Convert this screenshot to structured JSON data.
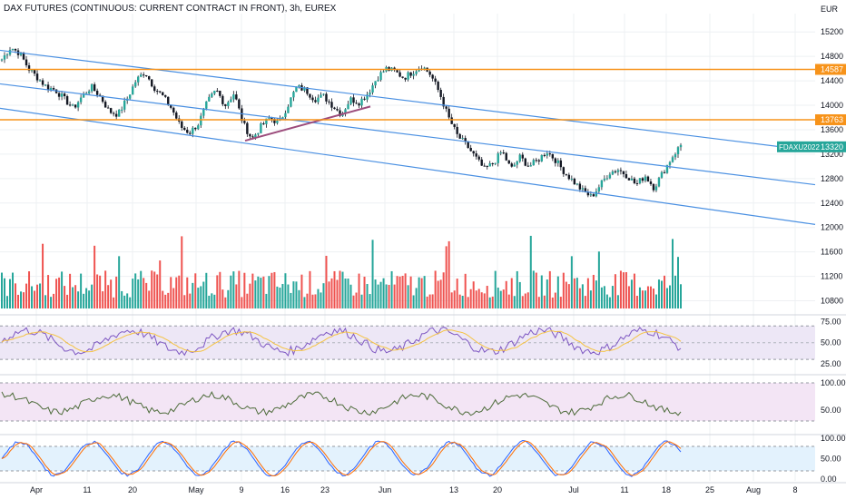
{
  "header": {
    "title": "DAX FUTURES (CONTINUOUS: CURRENT CONTRACT IN FRONT), 3h, EUREX"
  },
  "colors": {
    "up": "#26a69a",
    "down": "#131722",
    "channel": "#4a90e2",
    "level": "#f7931a",
    "trend": "#9c4c7c",
    "rsi": "#7e57c2",
    "rsi_ma": "#f5c342",
    "rsi_band": "#ede7f6",
    "cci": "#4d6b3a",
    "cci_band": "#f3e5f5",
    "stoch_k": "#2962ff",
    "stoch_d": "#ff6d00",
    "stoch_band": "#e3f2fd",
    "vol_up": "#26a69a",
    "vol_down": "#ef5350",
    "grid": "#eef0f3"
  },
  "chart_data": {
    "type": "candlestick",
    "instrument": "DAX FUTURES (CONTINUOUS: CURRENT CONTRACT IN FRONT)",
    "interval": "3h",
    "exchange": "EUREX",
    "currency": "EUR",
    "price_axis": {
      "ticks": [
        10800,
        11200,
        11600,
        12000,
        12400,
        12800,
        13200,
        13600,
        14000,
        14400,
        14800,
        15200
      ],
      "labels": [
        "10800",
        "11200",
        "11600",
        "12000",
        "12400",
        "12800",
        "13200",
        "13600",
        "14000",
        "14400",
        "14800",
        "15200"
      ],
      "range": [
        10600,
        15500
      ]
    },
    "time_axis": {
      "labels": [
        "Apr",
        "11",
        "20",
        "May",
        "9",
        "16",
        "23",
        "Jun",
        "13",
        "20",
        "Jul",
        "11",
        "18",
        "25",
        "Aug",
        "8"
      ]
    },
    "anchor_prices": [
      14750,
      14950,
      14850,
      14600,
      14450,
      14300,
      14250,
      14100,
      13950,
      14150,
      14300,
      14150,
      13900,
      13850,
      14100,
      14400,
      14550,
      14300,
      14150,
      13950,
      13650,
      13550,
      13700,
      14050,
      14250,
      14000,
      14200,
      13700,
      13450,
      13650,
      13800,
      13700,
      14000,
      14300,
      14250,
      14100,
      14150,
      14000,
      13850,
      14100,
      14050,
      14200,
      14450,
      14600,
      14550,
      14450,
      14550,
      14650,
      14500,
      14200,
      13800,
      13500,
      13350,
      13150,
      12950,
      13050,
      13250,
      12950,
      13150,
      13000,
      13100,
      13250,
      13100,
      12900,
      12750,
      12600,
      12500,
      12700,
      12900,
      12950,
      12850,
      12700,
      12850,
      12650,
      12900,
      13150,
      13350
    ],
    "last_price": {
      "label": "13320",
      "value": 13320,
      "symbol_label": "FDAXU2022"
    },
    "horizontal_levels": [
      {
        "value": 14587,
        "label": "14587"
      },
      {
        "value": 13763,
        "label": "13763"
      }
    ],
    "panels": {
      "rsi": {
        "ticks": [
          "75.00",
          "50.00",
          "25.00"
        ]
      },
      "cci": {
        "ticks": [
          "100.00",
          "50.00"
        ]
      },
      "stoch": {
        "ticks": [
          "100.00",
          "50.00",
          "0.00"
        ]
      }
    },
    "grid": true
  }
}
